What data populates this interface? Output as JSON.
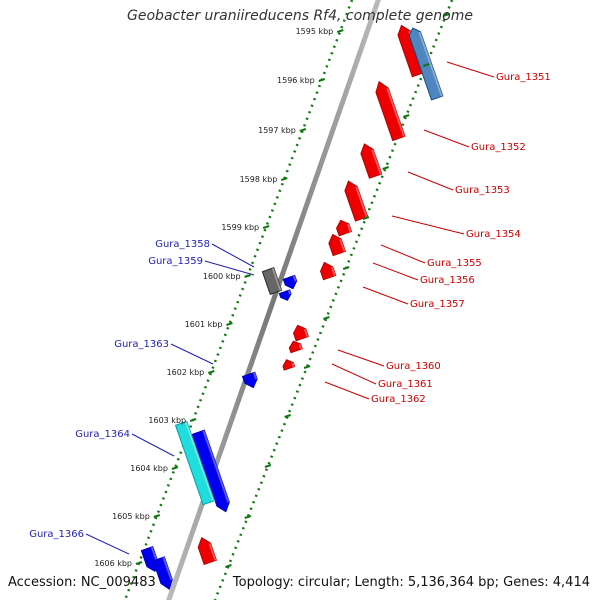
{
  "title": "Geobacter uraniireducens Rf4, complete genome",
  "footer": {
    "accession": "Accession: NC_009483",
    "topology": "Topology: circular; Length: 5,136,364 bp; Genes: 4,414"
  },
  "colors": {
    "reverse_strand": "#0000ee",
    "forward_strand": "#ee0000",
    "forward_rna": "#4f86bf",
    "reverse_pseudo": "#22dddd",
    "other": "#666666",
    "backbone": "#888888",
    "tick_line": "#117711"
  },
  "ticks": [
    {
      "label": "1595 kbp"
    },
    {
      "label": "1596 kbp"
    },
    {
      "label": "1597 kbp"
    },
    {
      "label": "1598 kbp"
    },
    {
      "label": "1599 kbp"
    },
    {
      "label": "1600 kbp"
    },
    {
      "label": "1601 kbp"
    },
    {
      "label": "1602 kbp"
    },
    {
      "label": "1603 kbp"
    },
    {
      "label": "1604 kbp"
    },
    {
      "label": "1605 kbp"
    },
    {
      "label": "1606 kbp"
    }
  ],
  "genes": [
    {
      "name": "Gura_1351",
      "side": "right",
      "color_key": "forward_strand"
    },
    {
      "name": "Gura_1352",
      "side": "right",
      "color_key": "forward_strand"
    },
    {
      "name": "Gura_1353",
      "side": "right",
      "color_key": "forward_strand"
    },
    {
      "name": "Gura_1354",
      "side": "right",
      "color_key": "forward_strand"
    },
    {
      "name": "Gura_1355",
      "side": "right",
      "color_key": "forward_strand"
    },
    {
      "name": "Gura_1356",
      "side": "right",
      "color_key": "forward_strand"
    },
    {
      "name": "Gura_1357",
      "side": "right",
      "color_key": "forward_strand"
    },
    {
      "name": "Gura_1358",
      "side": "left",
      "color_key": "reverse_strand"
    },
    {
      "name": "Gura_1359",
      "side": "left",
      "color_key": "reverse_strand"
    },
    {
      "name": "Gura_1360",
      "side": "right",
      "color_key": "forward_strand"
    },
    {
      "name": "Gura_1361",
      "side": "right",
      "color_key": "forward_strand"
    },
    {
      "name": "Gura_1362",
      "side": "right",
      "color_key": "forward_strand"
    },
    {
      "name": "Gura_1363",
      "side": "left",
      "color_key": "reverse_strand"
    },
    {
      "name": "Gura_1364",
      "side": "left",
      "color_key": "reverse_strand"
    },
    {
      "name": "Gura_1366",
      "side": "left",
      "color_key": "reverse_strand"
    }
  ]
}
